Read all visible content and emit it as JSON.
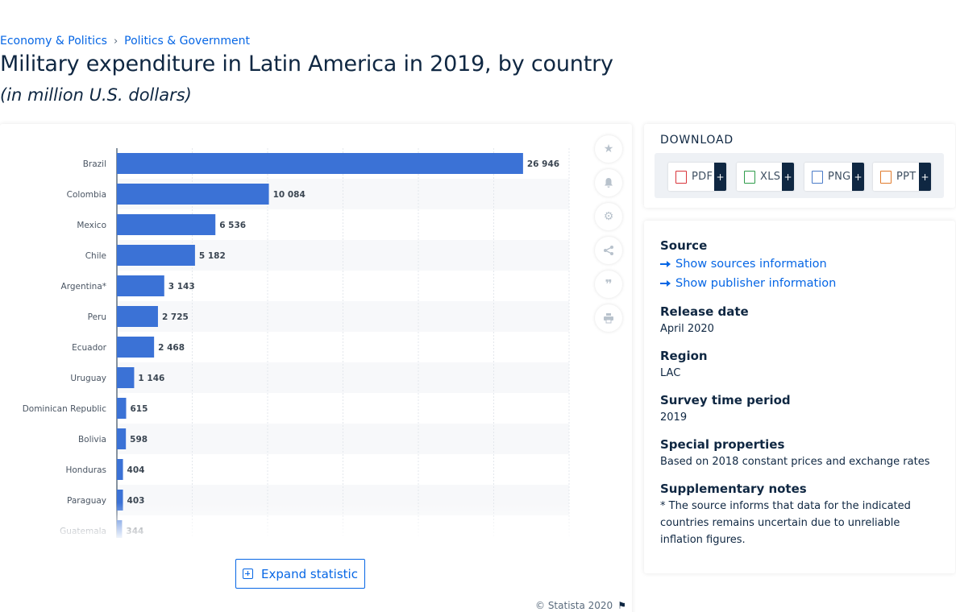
{
  "breadcrumb": {
    "items": [
      "Economy & Politics",
      "Politics & Government"
    ],
    "separator": "›"
  },
  "title": "Military expenditure in Latin America in 2019, by country",
  "subtitle": "(in million U.S. dollars)",
  "side_tools": {
    "icons": [
      "star-icon",
      "bell-icon",
      "gear-icon",
      "share-icon",
      "quote-icon",
      "print-icon"
    ]
  },
  "expand_label": "Expand statistic",
  "copyright": "© Statista 2020",
  "download": {
    "title": "DOWNLOAD",
    "formats": [
      {
        "label": "PDF",
        "plus": "+",
        "color": "#d9343a"
      },
      {
        "label": "XLS",
        "plus": "+",
        "color": "#2e9c4a"
      },
      {
        "label": "PNG",
        "plus": "+",
        "color": "#4a7bc8"
      },
      {
        "label": "PPT",
        "plus": "+",
        "color": "#e07b2c"
      }
    ]
  },
  "info": {
    "source_label": "Source",
    "show_sources": "Show sources information",
    "show_publisher": "Show publisher information",
    "release_label": "Release date",
    "release_value": "April 2020",
    "region_label": "Region",
    "region_value": "LAC",
    "survey_label": "Survey time period",
    "survey_value": "2019",
    "special_label": "Special properties",
    "special_value": "Based on 2018 constant prices and exchange rates",
    "notes_label": "Supplementary notes",
    "notes_value": "* The source informs that data for the indicated countries remains uncertain due to unreliable inflation figures."
  },
  "colors": {
    "bar": "#3b72d6",
    "accent": "#0666e5",
    "text": "#0f2742"
  },
  "chart_data": {
    "type": "bar",
    "orientation": "horizontal",
    "categories": [
      "Brazil",
      "Colombia",
      "Mexico",
      "Chile",
      "Argentina*",
      "Peru",
      "Ecuador",
      "Uruguay",
      "Dominican Republic",
      "Bolivia",
      "Honduras",
      "Paraguay",
      "Guatemala"
    ],
    "values": [
      26946,
      10084,
      6536,
      5182,
      3143,
      2725,
      2468,
      1146,
      615,
      598,
      404,
      403,
      344
    ],
    "value_labels": [
      "26 946",
      "10 084",
      "6 536",
      "5 182",
      "3 143",
      "2 725",
      "2 468",
      "1 146",
      "615",
      "598",
      "404",
      "403",
      "344"
    ],
    "xlim": [
      0,
      30000
    ],
    "grid": true,
    "title": "",
    "xlabel": "",
    "ylabel": ""
  }
}
